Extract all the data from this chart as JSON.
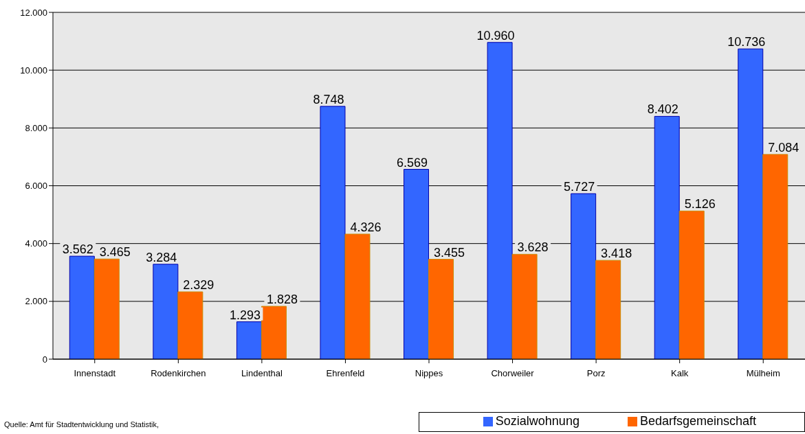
{
  "chart_data": {
    "type": "bar",
    "categories": [
      "Innenstadt",
      "Rodenkirchen",
      "Lindenthal",
      "Ehrenfeld",
      "Nippes",
      "Chorweiler",
      "Porz",
      "Kalk",
      "Mülheim"
    ],
    "series": [
      {
        "name": "Sozialwohnung",
        "color": "#3366ff",
        "values": [
          3562,
          3284,
          1293,
          8748,
          6569,
          10960,
          5727,
          8402,
          10736
        ],
        "value_labels": [
          "3.562",
          "3.284",
          "1.293",
          "8.748",
          "6.569",
          "10.960",
          "5.727",
          "8.402",
          "10.736"
        ]
      },
      {
        "name": "Bedarfsgemeinschaft",
        "color": "#ff6600",
        "values": [
          3465,
          2329,
          1828,
          4326,
          3455,
          3628,
          3418,
          5126,
          7084
        ],
        "value_labels": [
          "3.465",
          "2.329",
          "1.828",
          "4.326",
          "3.455",
          "3.628",
          "3.418",
          "5.126",
          "7.084"
        ]
      }
    ],
    "ylim": [
      0,
      12000
    ],
    "yticks": [
      {
        "value": 0,
        "label": "0"
      },
      {
        "value": 2000,
        "label": "2.000"
      },
      {
        "value": 4000,
        "label": "4.000"
      },
      {
        "value": 6000,
        "label": "6.000"
      },
      {
        "value": 8000,
        "label": "8.000"
      },
      {
        "value": 10000,
        "label": "10.000"
      },
      {
        "value": 12000,
        "label": "12.000"
      }
    ],
    "grid": "y",
    "legend": "bottom right",
    "annotations": [
      "Quelle: Amt für Stadtentwicklung und Statistik,"
    ]
  }
}
